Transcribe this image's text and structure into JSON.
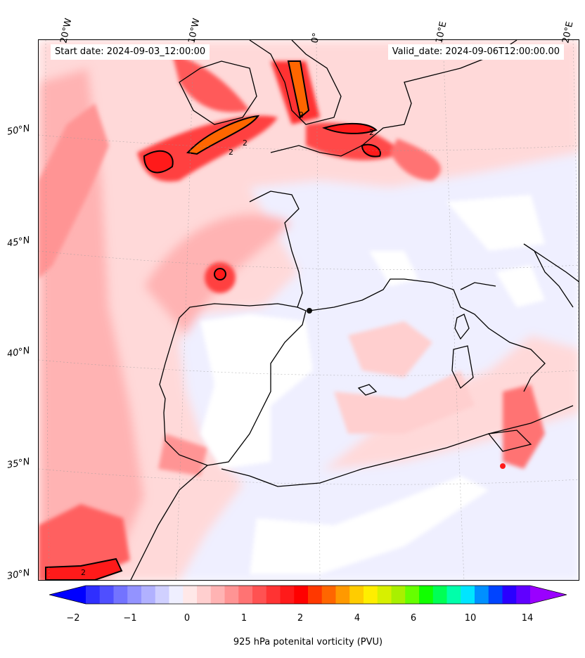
{
  "header": {
    "start_date": "Start date: 2024-09-03_12:00:00",
    "valid_date": "Valid_date: 2024-09-06T12:00:00.00"
  },
  "axes": {
    "longitude_labels": [
      "20°W",
      "10°W",
      "0°",
      "10°E",
      "20°E"
    ],
    "latitude_labels": [
      "50°N",
      "45°N",
      "40°N",
      "35°N",
      "30°N"
    ]
  },
  "map": {
    "projection": "lambert-conformal",
    "extent": {
      "lon": [
        -20,
        20
      ],
      "lat": [
        30,
        54
      ]
    },
    "gridlines": true,
    "coastlines": true,
    "contour_line_label": "2"
  },
  "colorbar": {
    "label": "925 hPa potenital vorticity (PVU)",
    "ticks": [
      "−2",
      "−1",
      "0",
      "1",
      "2",
      "4",
      "6",
      "10",
      "14"
    ],
    "extend": "both",
    "colors": [
      "#0000ff",
      "#2f2fff",
      "#4f4fff",
      "#7373ff",
      "#9393ff",
      "#b1b1ff",
      "#d0d0ff",
      "#efefff",
      "#ffe8e8",
      "#ffcfcf",
      "#ffb3b3",
      "#ff9494",
      "#ff7373",
      "#ff5252",
      "#ff3333",
      "#ff1a1a",
      "#ff0000",
      "#ff3800",
      "#ff6600",
      "#ff9900",
      "#ffcc00",
      "#ffee00",
      "#d7f000",
      "#a8f000",
      "#66ff00",
      "#11ff00",
      "#00ff55",
      "#00ffaa",
      "#00e5ff",
      "#0090ff",
      "#0044ff",
      "#2a00ff",
      "#6000ff",
      "#9a00ff"
    ]
  }
}
